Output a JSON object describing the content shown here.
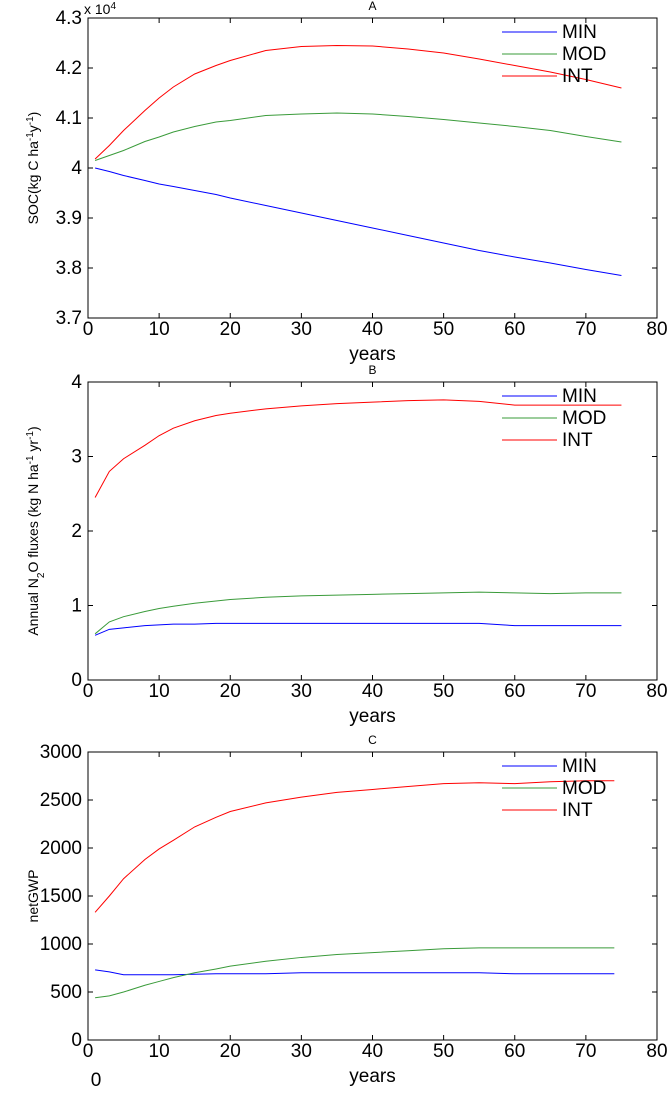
{
  "chart_data": [
    {
      "type": "line",
      "title": "A",
      "ylabel": [
        {
          "text": "SOC(kg C ha"
        },
        {
          "text": "-1",
          "shift": "super"
        },
        {
          "text": "y"
        },
        {
          "text": "-1",
          "shift": "super"
        },
        {
          "text": ")"
        }
      ],
      "multiplier": [
        {
          "text": "x 10"
        },
        {
          "text": "4",
          "shift": "super"
        }
      ],
      "xlabel": "years",
      "x": [
        1,
        3,
        5,
        8,
        10,
        12,
        15,
        18,
        20,
        25,
        30,
        35,
        40,
        45,
        50,
        55,
        60,
        65,
        70,
        75
      ],
      "series": [
        {
          "name": "MIN",
          "color": "#0000ff",
          "values": [
            4.0,
            3.993,
            3.985,
            3.975,
            3.968,
            3.963,
            3.955,
            3.947,
            3.94,
            3.925,
            3.91,
            3.895,
            3.88,
            3.865,
            3.85,
            3.835,
            3.822,
            3.81,
            3.797,
            3.785
          ]
        },
        {
          "name": "MOD",
          "color": "#3a9b3a",
          "values": [
            4.015,
            4.025,
            4.035,
            4.053,
            4.062,
            4.072,
            4.083,
            4.092,
            4.095,
            4.105,
            4.108,
            4.11,
            4.108,
            4.103,
            4.097,
            4.09,
            4.083,
            4.075,
            4.063,
            4.052
          ]
        },
        {
          "name": "INT",
          "color": "#ff0000",
          "values": [
            4.018,
            4.045,
            4.075,
            4.115,
            4.14,
            4.162,
            4.188,
            4.205,
            4.215,
            4.235,
            4.243,
            4.245,
            4.244,
            4.238,
            4.23,
            4.218,
            4.205,
            4.192,
            4.177,
            4.16
          ]
        }
      ],
      "xlim": [
        0,
        80
      ],
      "xticks": [
        0,
        10,
        20,
        30,
        40,
        50,
        60,
        70,
        80
      ],
      "ylim": [
        3.7,
        4.3
      ],
      "yticks": [
        3.7,
        3.8,
        3.9,
        4,
        4.1,
        4.2,
        4.3
      ],
      "legend": "upper right"
    },
    {
      "type": "line",
      "title": "B",
      "ylabel": [
        {
          "text": "Annual N"
        },
        {
          "text": "2",
          "shift": "sub"
        },
        {
          "text": "O fluxes (kg N ha"
        },
        {
          "text": "-1",
          "shift": "super"
        },
        {
          "text": " yr"
        },
        {
          "text": "-1",
          "shift": "super"
        },
        {
          "text": ")"
        }
      ],
      "xlabel": "years",
      "x": [
        1,
        3,
        5,
        8,
        10,
        12,
        15,
        18,
        20,
        25,
        30,
        35,
        40,
        45,
        50,
        55,
        60,
        65,
        70,
        75
      ],
      "series": [
        {
          "name": "MIN",
          "color": "#0000ff",
          "values": [
            0.6,
            0.68,
            0.7,
            0.73,
            0.74,
            0.75,
            0.75,
            0.76,
            0.76,
            0.76,
            0.76,
            0.76,
            0.76,
            0.76,
            0.76,
            0.76,
            0.73,
            0.73,
            0.73,
            0.73
          ]
        },
        {
          "name": "MOD",
          "color": "#3a9b3a",
          "values": [
            0.62,
            0.78,
            0.85,
            0.92,
            0.96,
            0.99,
            1.03,
            1.06,
            1.08,
            1.11,
            1.13,
            1.14,
            1.15,
            1.16,
            1.17,
            1.18,
            1.17,
            1.16,
            1.17,
            1.17
          ]
        },
        {
          "name": "INT",
          "color": "#ff0000",
          "values": [
            2.45,
            2.8,
            2.97,
            3.15,
            3.28,
            3.38,
            3.48,
            3.55,
            3.58,
            3.64,
            3.68,
            3.71,
            3.73,
            3.75,
            3.76,
            3.74,
            3.69,
            3.69,
            3.69,
            3.69
          ]
        }
      ],
      "xlim": [
        0,
        80
      ],
      "xticks": [
        0,
        10,
        20,
        30,
        40,
        50,
        60,
        70,
        80
      ],
      "ylim": [
        0,
        4
      ],
      "yticks": [
        0,
        1,
        2,
        3,
        4
      ],
      "legend": "upper right"
    },
    {
      "type": "line",
      "title": "C",
      "ylabel": [
        {
          "text": "netGWP"
        }
      ],
      "xlabel": "years",
      "x": [
        1,
        3,
        5,
        8,
        10,
        12,
        15,
        18,
        20,
        25,
        30,
        35,
        40,
        45,
        50,
        55,
        60,
        65,
        70,
        74
      ],
      "series": [
        {
          "name": "MIN",
          "color": "#0000ff",
          "values": [
            730,
            710,
            680,
            680,
            680,
            680,
            685,
            690,
            690,
            690,
            700,
            700,
            700,
            700,
            700,
            700,
            690,
            690,
            690,
            690
          ]
        },
        {
          "name": "MOD",
          "color": "#3a9b3a",
          "values": [
            440,
            460,
            500,
            570,
            610,
            650,
            700,
            740,
            770,
            820,
            860,
            890,
            910,
            930,
            950,
            960,
            960,
            960,
            960,
            960
          ]
        },
        {
          "name": "INT",
          "color": "#ff0000",
          "values": [
            1330,
            1500,
            1680,
            1880,
            1990,
            2080,
            2220,
            2320,
            2380,
            2470,
            2530,
            2580,
            2610,
            2640,
            2670,
            2680,
            2670,
            2690,
            2700,
            2700
          ]
        }
      ],
      "xlim": [
        0,
        80
      ],
      "xticks": [
        0,
        10,
        20,
        30,
        40,
        50,
        60,
        70,
        80
      ],
      "ylim": [
        0,
        3000
      ],
      "yticks": [
        0,
        500,
        1000,
        1500,
        2000,
        2500,
        3000
      ],
      "legend": "upper right"
    }
  ],
  "footnote": "0"
}
